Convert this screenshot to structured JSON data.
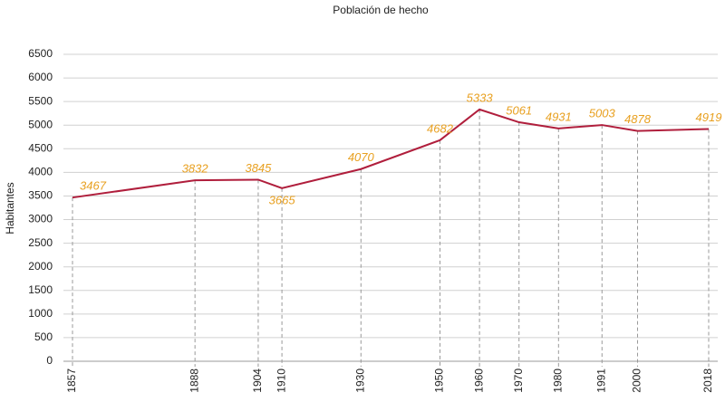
{
  "chart_data": {
    "type": "line",
    "title": "Población de hecho",
    "y_label": "Habitantes",
    "x": [
      1857,
      1888,
      1904,
      1910,
      1930,
      1950,
      1960,
      1970,
      1980,
      1991,
      2000,
      2018
    ],
    "values": [
      3467,
      3832,
      3845,
      3665,
      4070,
      4682,
      5333,
      5061,
      4931,
      5003,
      4878,
      4919
    ],
    "color": "#b01e3c",
    "label_color": "#e8a020",
    "xlim": [
      1857,
      2018
    ],
    "xticks": [
      1857,
      1888,
      1904,
      1910,
      1930,
      1950,
      1960,
      1970,
      1980,
      1991,
      2000,
      2018
    ],
    "ylim": [
      0,
      6500
    ],
    "yticks": [
      0,
      500,
      1000,
      1500,
      2000,
      2500,
      3000,
      3500,
      4000,
      4500,
      5000,
      5500,
      6000,
      6500
    ],
    "grid": true
  }
}
